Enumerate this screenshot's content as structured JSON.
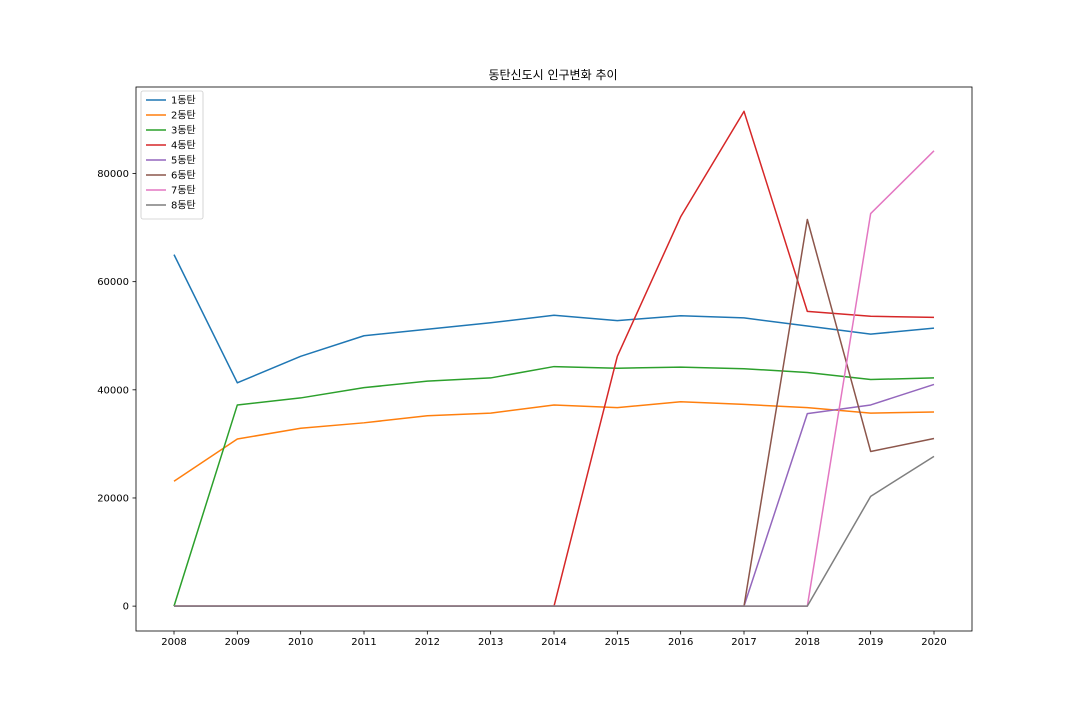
{
  "chart_data": {
    "type": "line",
    "title": "동탄신도시 인구변화 추이",
    "xlabel": "",
    "ylabel": "",
    "x": [
      2008,
      2009,
      2010,
      2011,
      2012,
      2013,
      2014,
      2015,
      2016,
      2017,
      2018,
      2019,
      2020
    ],
    "x_tick_labels": [
      "2008",
      "2009",
      "2010",
      "2011",
      "2012",
      "2013",
      "2014",
      "2015",
      "2016",
      "2017",
      "2018",
      "2019",
      "2020"
    ],
    "ylim": [
      -4600,
      96000
    ],
    "y_ticks": [
      0,
      20000,
      40000,
      60000,
      80000
    ],
    "y_tick_labels": [
      "0",
      "20000",
      "40000",
      "60000",
      "80000"
    ],
    "grid": false,
    "legend_position": "upper-left",
    "series": [
      {
        "name": "1동탄",
        "color": "#1f77b4",
        "values": [
          65000,
          41300,
          46200,
          50000,
          51200,
          52400,
          53800,
          52800,
          53700,
          53300,
          51800,
          50300,
          51400
        ]
      },
      {
        "name": "2동탄",
        "color": "#ff7f0e",
        "values": [
          23100,
          30900,
          32900,
          33900,
          35200,
          35700,
          37200,
          36700,
          37800,
          37300,
          36700,
          35700,
          35900
        ]
      },
      {
        "name": "3동탄",
        "color": "#2ca02c",
        "values": [
          0,
          37200,
          38500,
          40400,
          41600,
          42200,
          44300,
          44000,
          44200,
          43900,
          43200,
          41900,
          42200
        ]
      },
      {
        "name": "4동탄",
        "color": "#d62728",
        "values": [
          0,
          0,
          0,
          0,
          0,
          0,
          0,
          46200,
          72000,
          91500,
          54500,
          53600,
          53400
        ]
      },
      {
        "name": "5동탄",
        "color": "#9467bd",
        "values": [
          0,
          0,
          0,
          0,
          0,
          0,
          0,
          0,
          0,
          0,
          35600,
          37200,
          41000
        ]
      },
      {
        "name": "6동탄",
        "color": "#8c564b",
        "values": [
          0,
          0,
          0,
          0,
          0,
          0,
          0,
          0,
          0,
          0,
          71500,
          28600,
          31000
        ]
      },
      {
        "name": "7동탄",
        "color": "#e377c2",
        "values": [
          0,
          0,
          0,
          0,
          0,
          0,
          0,
          0,
          0,
          0,
          0,
          72600,
          84200
        ]
      },
      {
        "name": "8동탄",
        "color": "#7f7f7f",
        "values": [
          0,
          0,
          0,
          0,
          0,
          0,
          0,
          0,
          0,
          0,
          0,
          20300,
          27700
        ]
      }
    ]
  }
}
